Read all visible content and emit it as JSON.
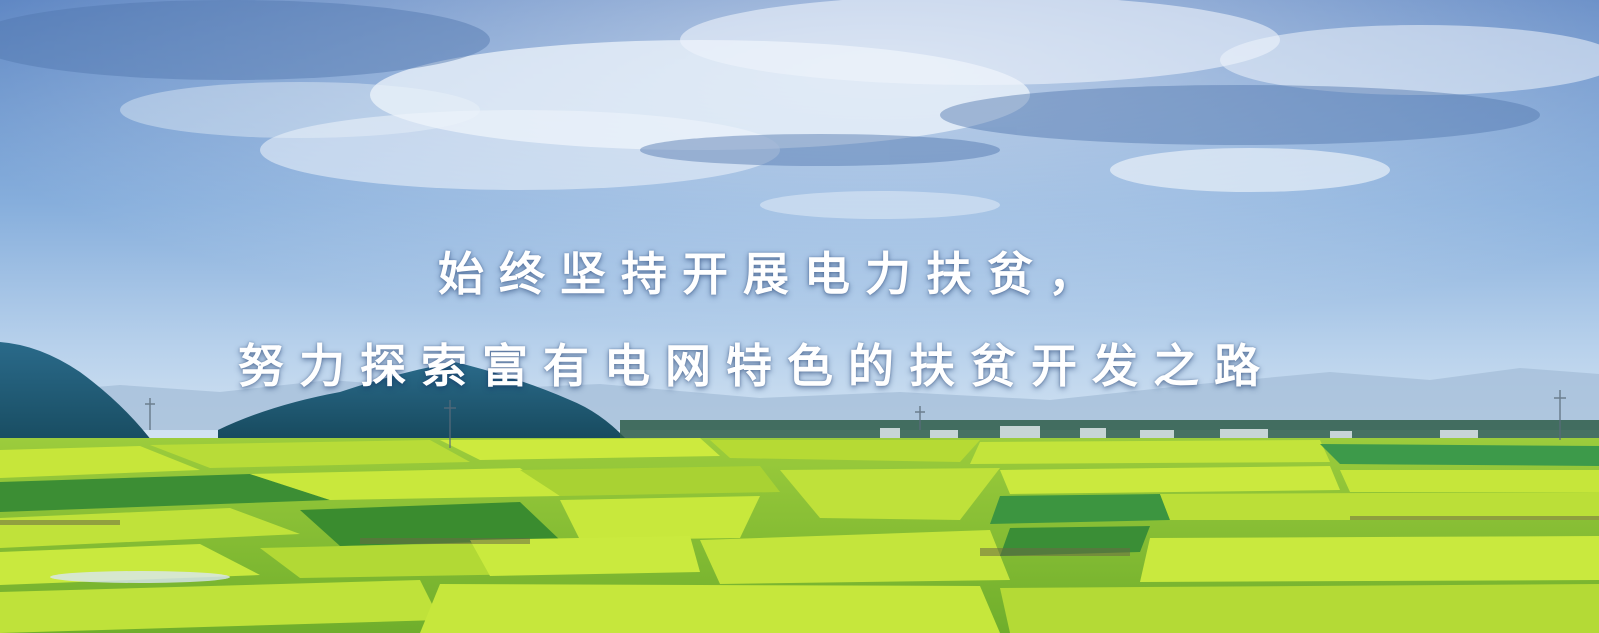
{
  "banner": {
    "headline": {
      "line1": "始终坚持开展电力扶贫，",
      "line2": "努力探索富有电网特色的扶贫开发之路"
    },
    "colors": {
      "sky_top": "#5d86c4",
      "sky_horizon": "#c8dcef",
      "cloud": "#eef4fb",
      "hill": "#1f5a7a",
      "field_yellow": "#c9e83a",
      "field_green": "#3f9a3a",
      "text": "#ffffff"
    }
  }
}
